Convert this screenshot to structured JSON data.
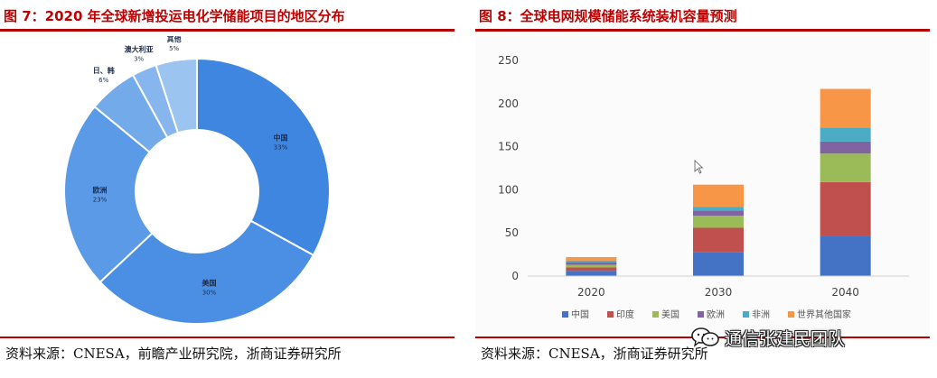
{
  "figures": {
    "left": {
      "title": "图 7：2020 年全球新增投运电化学储能项目的地区分布",
      "source": "资料来源：CNESA，前瞻产业研究院，浙商证券研究所",
      "watermark": "前瞻产业研究院"
    },
    "right": {
      "title": "图 8：全球电网规模储能系统装机容量预测",
      "source": "资料来源：CNESA，浙商证券研究所",
      "watermark": "通信张建民团队"
    }
  },
  "chart_data": [
    {
      "type": "pie",
      "donut": true,
      "title": "2020 年全球新增投运电化学储能项目的地区分布",
      "legend": "none",
      "slices": [
        {
          "label": "中国",
          "pct_label": "33%",
          "value": 33,
          "color": "#3f86e1"
        },
        {
          "label": "美国",
          "pct_label": "30%",
          "value": 30,
          "color": "#4a8fe3"
        },
        {
          "label": "欧洲",
          "pct_label": "23%",
          "value": 23,
          "color": "#5a9ae6"
        },
        {
          "label": "日、韩",
          "pct_label": "6%",
          "value": 6,
          "color": "#73aaea"
        },
        {
          "label": "澳大利亚",
          "pct_label": "3%",
          "value": 3,
          "color": "#86b6ed"
        },
        {
          "label": "其他",
          "pct_label": "5%",
          "value": 5,
          "color": "#9cc4f1"
        }
      ]
    },
    {
      "type": "bar",
      "stacked": true,
      "title": "全球电网规模储能系统装机容量预测",
      "xlabel": "",
      "ylabel": "",
      "categories": [
        "2020",
        "2030",
        "2040"
      ],
      "ylim": [
        0,
        250
      ],
      "yticks": [
        0,
        50,
        100,
        150,
        200,
        250
      ],
      "grid": false,
      "legend_position": "bottom",
      "series": [
        {
          "name": "中国",
          "color": "#4472c4",
          "values": [
            6,
            28,
            47
          ]
        },
        {
          "name": "印度",
          "color": "#c0504d",
          "values": [
            4,
            28,
            62
          ]
        },
        {
          "name": "美国",
          "color": "#9bbb59",
          "values": [
            3,
            14,
            33
          ]
        },
        {
          "name": "欧洲",
          "color": "#8064a2",
          "values": [
            3,
            6,
            14
          ]
        },
        {
          "name": "非洲",
          "color": "#4bacc6",
          "values": [
            2,
            4,
            16
          ]
        },
        {
          "name": "世界其他国家",
          "color": "#f79646",
          "values": [
            4,
            26,
            45
          ]
        }
      ]
    }
  ]
}
